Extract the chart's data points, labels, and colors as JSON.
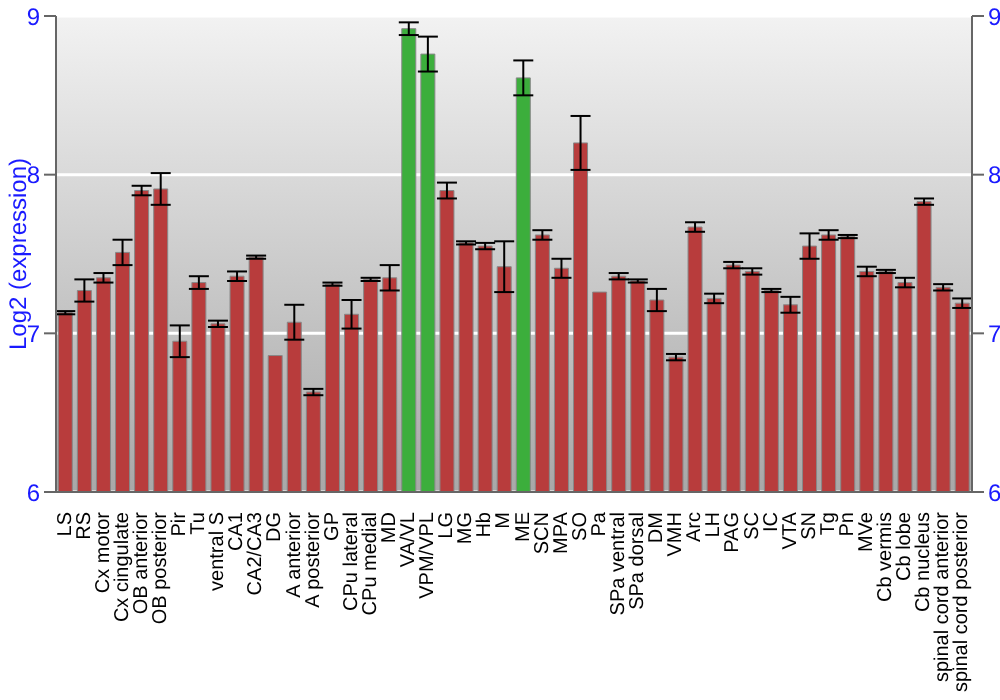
{
  "chart_data": {
    "type": "bar",
    "ylabel": "Log2 (expression)",
    "categories": [
      "LS",
      "RS",
      "Cx motor",
      "Cx cingulate",
      "OB anterior",
      "OB posterior",
      "Pir",
      "Tu",
      "ventral S",
      "CA1",
      "CA2/CA3",
      "DG",
      "A anterior",
      "A posterior",
      "GP",
      "CPu lateral",
      "CPu medial",
      "MD",
      "VA/VL",
      "VPM/VPL",
      "LG",
      "MG",
      "Hb",
      "M",
      "ME",
      "SCN",
      "MPA",
      "SO",
      "Pa",
      "SPa ventral",
      "SPa dorsal",
      "DM",
      "VMH",
      "Arc",
      "LH",
      "PAG",
      "SC",
      "IC",
      "VTA",
      "SN",
      "Tg",
      "Pn",
      "MVe",
      "Cb vermis",
      "Cb lobe",
      "Cb nucleus",
      "spinal cord anterior",
      "spinal cord posterior"
    ],
    "values": [
      7.13,
      7.27,
      7.35,
      7.51,
      7.9,
      7.91,
      6.95,
      7.32,
      7.06,
      7.36,
      7.48,
      6.86,
      7.07,
      6.63,
      7.31,
      7.12,
      7.34,
      7.35,
      8.92,
      8.76,
      7.9,
      7.57,
      7.55,
      7.42,
      8.61,
      7.62,
      7.41,
      8.2,
      7.26,
      7.36,
      7.33,
      7.21,
      6.85,
      7.67,
      7.22,
      7.43,
      7.39,
      7.27,
      7.18,
      7.55,
      7.62,
      7.61,
      7.39,
      7.39,
      7.32,
      7.83,
      7.29,
      7.19
    ],
    "errors": [
      0.01,
      0.07,
      0.03,
      0.08,
      0.03,
      0.1,
      0.1,
      0.04,
      0.02,
      0.03,
      0.01,
      0,
      0.11,
      0.02,
      0.01,
      0.09,
      0.01,
      0.08,
      0.04,
      0.11,
      0.05,
      0.01,
      0.02,
      0.16,
      0.11,
      0.03,
      0.06,
      0.17,
      0,
      0.02,
      0.01,
      0.07,
      0.02,
      0.03,
      0.03,
      0.02,
      0.02,
      0.01,
      0.05,
      0.08,
      0.03,
      0.01,
      0.03,
      0.01,
      0.03,
      0.02,
      0.02,
      0.03
    ],
    "colors": [
      "#b83c3c",
      "#b83c3c",
      "#b83c3c",
      "#b83c3c",
      "#b83c3c",
      "#b83c3c",
      "#b83c3c",
      "#b83c3c",
      "#b83c3c",
      "#b83c3c",
      "#b83c3c",
      "#b83c3c",
      "#b83c3c",
      "#b83c3c",
      "#b83c3c",
      "#b83c3c",
      "#b83c3c",
      "#b83c3c",
      "#3cae3c",
      "#3cae3c",
      "#b83c3c",
      "#b83c3c",
      "#b83c3c",
      "#b83c3c",
      "#3cae3c",
      "#b83c3c",
      "#b83c3c",
      "#b83c3c",
      "#b83c3c",
      "#b83c3c",
      "#b83c3c",
      "#b83c3c",
      "#b83c3c",
      "#b83c3c",
      "#b83c3c",
      "#b83c3c",
      "#b83c3c",
      "#b83c3c",
      "#b83c3c",
      "#b83c3c",
      "#b83c3c",
      "#b83c3c",
      "#b83c3c",
      "#b83c3c",
      "#b83c3c",
      "#b83c3c",
      "#b83c3c",
      "#b83c3c"
    ],
    "ylim": [
      6,
      9
    ],
    "yticks": [
      6,
      7,
      8,
      9
    ],
    "y2lim": [
      6,
      9
    ],
    "y2ticks": [
      6,
      7,
      8,
      9
    ],
    "grid": "y",
    "legend": false
  }
}
